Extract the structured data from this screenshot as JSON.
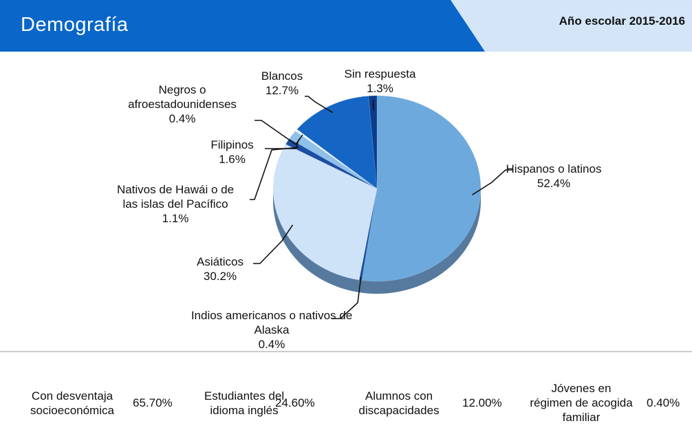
{
  "header": {
    "title": "Demografía",
    "year": "Año escolar 2015-2016"
  },
  "chart_data": {
    "type": "pie",
    "categories": [
      "Hispanos o latinos",
      "Indios americanos o nativos de Alaska",
      "Asiáticos",
      "Nativos de Hawái o de las islas del Pacífico",
      "Filipinos",
      "Negros o afroestadounidenses",
      "Blancos",
      "Sin respuesta"
    ],
    "values": [
      52.4,
      0.4,
      30.2,
      1.1,
      1.6,
      0.4,
      12.7,
      1.3
    ],
    "value_labels": [
      "52.4%",
      "0.4%",
      "30.2%",
      "1.1%",
      "1.6%",
      "0.4%",
      "12.7%",
      "1.3%"
    ],
    "colors": [
      "#6ea9de",
      "#1a4f9c",
      "#cfe3f8",
      "#1b4fa3",
      "#8ec0ea",
      "#e9f1fb",
      "#1566c4",
      "#0c3d8c"
    ]
  },
  "stats": [
    {
      "label": "Con desventaja socioeconómica",
      "value": "65.70%"
    },
    {
      "label": "Estudiantes del idioma inglés",
      "value": "24.60%"
    },
    {
      "label": "Alumnos con discapacidades",
      "value": "12.00%"
    },
    {
      "label": "Jóvenes en régimen de acogida familiar",
      "value": "0.40%"
    }
  ]
}
